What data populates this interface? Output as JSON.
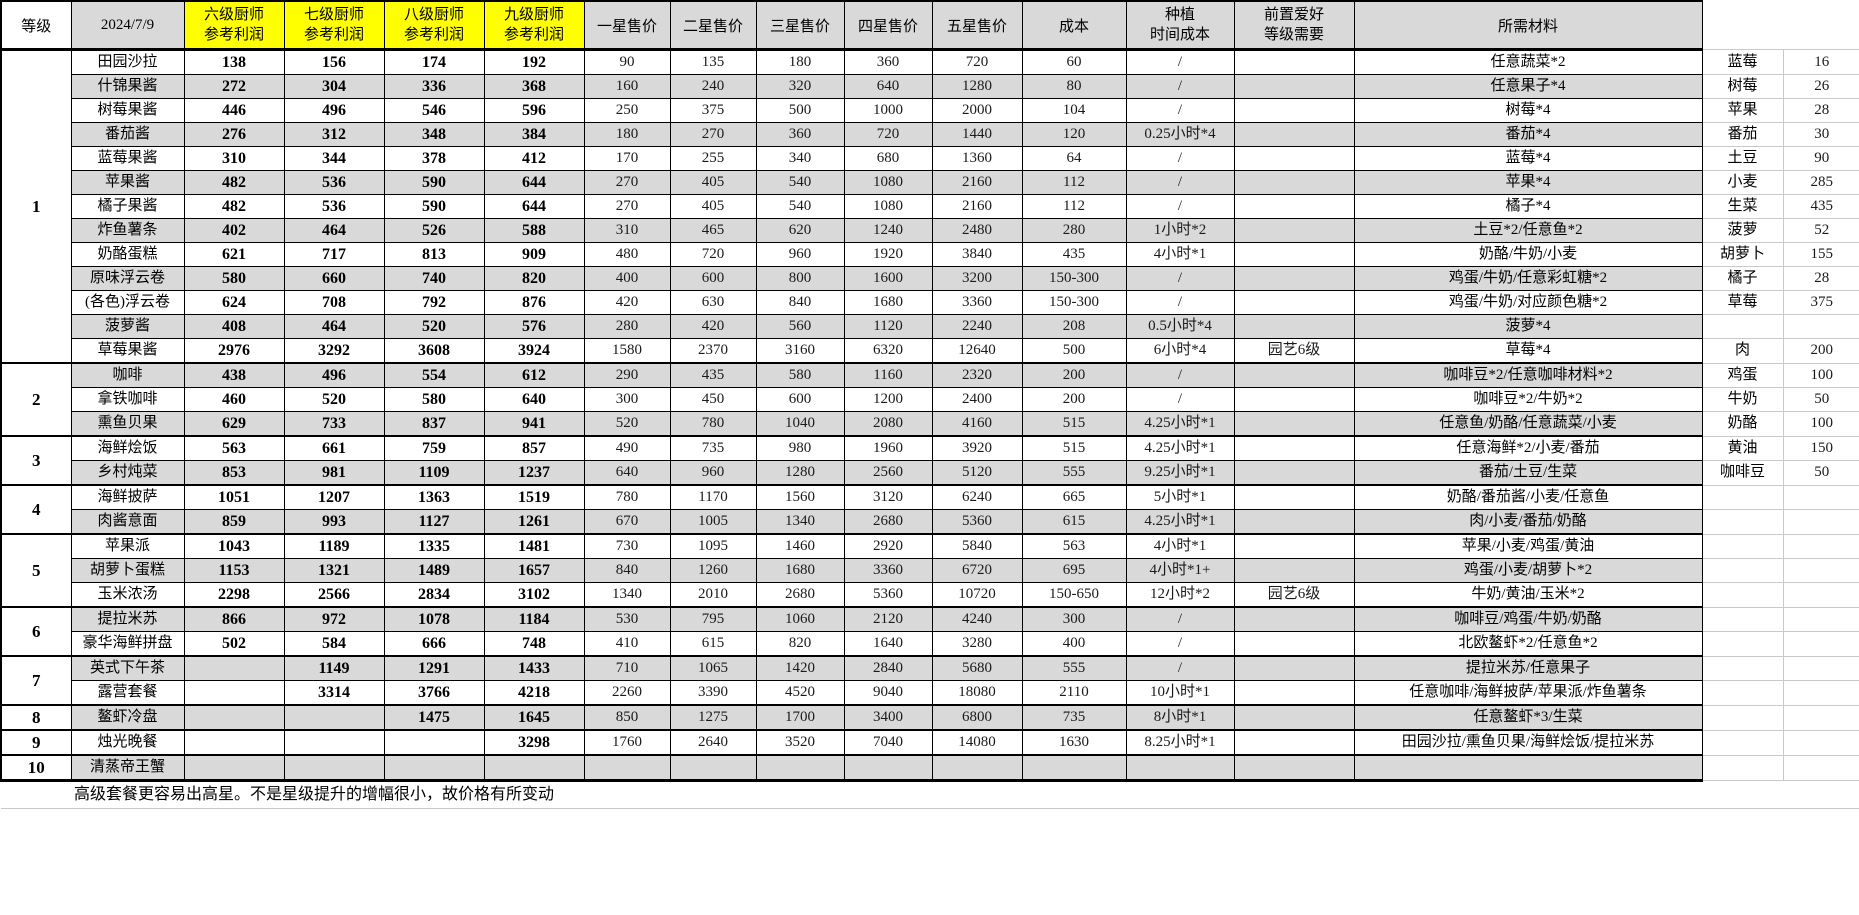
{
  "header": {
    "level": "等级",
    "date": "2024/7/9",
    "chef6": "六级厨师",
    "chef7": "七级厨师",
    "chef8": "八级厨师",
    "chef9": "九级厨师",
    "profit_sub": "参考利润",
    "star1": "一星售价",
    "star2": "二星售价",
    "star3": "三星售价",
    "star4": "四星售价",
    "star5": "五星售价",
    "cost": "成本",
    "plant1": "种植",
    "plant2": "时间成本",
    "hobby1": "前置爱好",
    "hobby2": "等级需要",
    "materials": "所需材料"
  },
  "colors": {
    "highlight": "#ffff00",
    "row_shade": "#d9d9d9",
    "grid": "#000000",
    "light_grid": "#c9c9c9"
  },
  "rows": [
    {
      "level": "1",
      "span": 13,
      "name": "田园沙拉",
      "p6": "138",
      "p7": "156",
      "p8": "174",
      "p9": "192",
      "s1": "90",
      "s2": "135",
      "s3": "180",
      "s4": "360",
      "s5": "720",
      "cost": "60",
      "time": "/",
      "hobby": "",
      "mats": "任意蔬菜*2",
      "ing": "蓝莓",
      "price": "16"
    },
    {
      "name": "什锦果酱",
      "p6": "272",
      "p7": "304",
      "p8": "336",
      "p9": "368",
      "s1": "160",
      "s2": "240",
      "s3": "320",
      "s4": "640",
      "s5": "1280",
      "cost": "80",
      "time": "/",
      "hobby": "",
      "mats": "任意果子*4",
      "ing": "树莓",
      "price": "26"
    },
    {
      "name": "树莓果酱",
      "p6": "446",
      "p7": "496",
      "p8": "546",
      "p9": "596",
      "s1": "250",
      "s2": "375",
      "s3": "500",
      "s4": "1000",
      "s5": "2000",
      "cost": "104",
      "time": "/",
      "hobby": "",
      "mats": "树莓*4",
      "ing": "苹果",
      "price": "28"
    },
    {
      "name": "番茄酱",
      "p6": "276",
      "p7": "312",
      "p8": "348",
      "p9": "384",
      "s1": "180",
      "s2": "270",
      "s3": "360",
      "s4": "720",
      "s5": "1440",
      "cost": "120",
      "time": "0.25小时*4",
      "hobby": "",
      "mats": "番茄*4",
      "ing": "番茄",
      "price": "30"
    },
    {
      "name": "蓝莓果酱",
      "p6": "310",
      "p7": "344",
      "p8": "378",
      "p9": "412",
      "s1": "170",
      "s2": "255",
      "s3": "340",
      "s4": "680",
      "s5": "1360",
      "cost": "64",
      "time": "/",
      "hobby": "",
      "mats": "蓝莓*4",
      "ing": "土豆",
      "price": "90"
    },
    {
      "name": "苹果酱",
      "p6": "482",
      "p7": "536",
      "p8": "590",
      "p9": "644",
      "s1": "270",
      "s2": "405",
      "s3": "540",
      "s4": "1080",
      "s5": "2160",
      "cost": "112",
      "time": "/",
      "hobby": "",
      "mats": "苹果*4",
      "ing": "小麦",
      "price": "285"
    },
    {
      "name": "橘子果酱",
      "p6": "482",
      "p7": "536",
      "p8": "590",
      "p9": "644",
      "s1": "270",
      "s2": "405",
      "s3": "540",
      "s4": "1080",
      "s5": "2160",
      "cost": "112",
      "time": "/",
      "hobby": "",
      "mats": "橘子*4",
      "ing": "生菜",
      "price": "435"
    },
    {
      "name": "炸鱼薯条",
      "p6": "402",
      "p7": "464",
      "p8": "526",
      "p9": "588",
      "s1": "310",
      "s2": "465",
      "s3": "620",
      "s4": "1240",
      "s5": "2480",
      "cost": "280",
      "time": "1小时*2",
      "hobby": "",
      "mats": "土豆*2/任意鱼*2",
      "ing": "菠萝",
      "price": "52"
    },
    {
      "name": "奶酪蛋糕",
      "p6": "621",
      "p7": "717",
      "p8": "813",
      "p9": "909",
      "s1": "480",
      "s2": "720",
      "s3": "960",
      "s4": "1920",
      "s5": "3840",
      "cost": "435",
      "time": "4小时*1",
      "hobby": "",
      "mats": "奶酪/牛奶/小麦",
      "ing": "胡萝卜",
      "price": "155"
    },
    {
      "name": "原味浮云卷",
      "p6": "580",
      "p7": "660",
      "p8": "740",
      "p9": "820",
      "s1": "400",
      "s2": "600",
      "s3": "800",
      "s4": "1600",
      "s5": "3200",
      "cost": "150-300",
      "time": "/",
      "hobby": "",
      "mats": "鸡蛋/牛奶/任意彩虹糖*2",
      "ing": "橘子",
      "price": "28"
    },
    {
      "name": "(各色)浮云卷",
      "p6": "624",
      "p7": "708",
      "p8": "792",
      "p9": "876",
      "s1": "420",
      "s2": "630",
      "s3": "840",
      "s4": "1680",
      "s5": "3360",
      "cost": "150-300",
      "time": "/",
      "hobby": "",
      "mats": "鸡蛋/牛奶/对应颜色糖*2",
      "ing": "草莓",
      "price": "375"
    },
    {
      "name": "菠萝酱",
      "p6": "408",
      "p7": "464",
      "p8": "520",
      "p9": "576",
      "s1": "280",
      "s2": "420",
      "s3": "560",
      "s4": "1120",
      "s5": "2240",
      "cost": "208",
      "time": "0.5小时*4",
      "hobby": "",
      "mats": "菠萝*4",
      "ing": "",
      "price": ""
    },
    {
      "name": "草莓果酱",
      "p6": "2976",
      "p7": "3292",
      "p8": "3608",
      "p9": "3924",
      "s1": "1580",
      "s2": "2370",
      "s3": "3160",
      "s4": "6320",
      "s5": "12640",
      "cost": "500",
      "time": "6小时*4",
      "hobby": "园艺6级",
      "mats": "草莓*4",
      "ing": "肉",
      "price": "200"
    },
    {
      "level": "2",
      "span": 3,
      "name": "咖啡",
      "p6": "438",
      "p7": "496",
      "p8": "554",
      "p9": "612",
      "s1": "290",
      "s2": "435",
      "s3": "580",
      "s4": "1160",
      "s5": "2320",
      "cost": "200",
      "time": "/",
      "hobby": "",
      "mats": "咖啡豆*2/任意咖啡材料*2",
      "ing": "鸡蛋",
      "price": "100"
    },
    {
      "name": "拿铁咖啡",
      "p6": "460",
      "p7": "520",
      "p8": "580",
      "p9": "640",
      "s1": "300",
      "s2": "450",
      "s3": "600",
      "s4": "1200",
      "s5": "2400",
      "cost": "200",
      "time": "/",
      "hobby": "",
      "mats": "咖啡豆*2/牛奶*2",
      "ing": "牛奶",
      "price": "50"
    },
    {
      "name": "熏鱼贝果",
      "p6": "629",
      "p7": "733",
      "p8": "837",
      "p9": "941",
      "s1": "520",
      "s2": "780",
      "s3": "1040",
      "s4": "2080",
      "s5": "4160",
      "cost": "515",
      "time": "4.25小时*1",
      "hobby": "",
      "mats": "任意鱼/奶酪/任意蔬菜/小麦",
      "ing": "奶酪",
      "price": "100"
    },
    {
      "level": "3",
      "span": 2,
      "name": "海鲜烩饭",
      "p6": "563",
      "p7": "661",
      "p8": "759",
      "p9": "857",
      "s1": "490",
      "s2": "735",
      "s3": "980",
      "s4": "1960",
      "s5": "3920",
      "cost": "515",
      "time": "4.25小时*1",
      "hobby": "",
      "mats": "任意海鲜*2/小麦/番茄",
      "ing": "黄油",
      "price": "150"
    },
    {
      "name": "乡村炖菜",
      "p6": "853",
      "p7": "981",
      "p8": "1109",
      "p9": "1237",
      "s1": "640",
      "s2": "960",
      "s3": "1280",
      "s4": "2560",
      "s5": "5120",
      "cost": "555",
      "time": "9.25小时*1",
      "hobby": "",
      "mats": "番茄/土豆/生菜",
      "ing": "咖啡豆",
      "price": "50"
    },
    {
      "level": "4",
      "span": 2,
      "name": "海鲜披萨",
      "p6": "1051",
      "p7": "1207",
      "p8": "1363",
      "p9": "1519",
      "s1": "780",
      "s2": "1170",
      "s3": "1560",
      "s4": "3120",
      "s5": "6240",
      "cost": "665",
      "time": "5小时*1",
      "hobby": "",
      "mats": "奶酪/番茄酱/小麦/任意鱼",
      "ing": "",
      "price": ""
    },
    {
      "name": "肉酱意面",
      "p6": "859",
      "p7": "993",
      "p8": "1127",
      "p9": "1261",
      "s1": "670",
      "s2": "1005",
      "s3": "1340",
      "s4": "2680",
      "s5": "5360",
      "cost": "615",
      "time": "4.25小时*1",
      "hobby": "",
      "mats": "肉/小麦/番茄/奶酪",
      "ing": "",
      "price": ""
    },
    {
      "level": "5",
      "span": 3,
      "name": "苹果派",
      "p6": "1043",
      "p7": "1189",
      "p8": "1335",
      "p9": "1481",
      "s1": "730",
      "s2": "1095",
      "s3": "1460",
      "s4": "2920",
      "s5": "5840",
      "cost": "563",
      "time": "4小时*1",
      "hobby": "",
      "mats": "苹果/小麦/鸡蛋/黄油",
      "ing": "",
      "price": ""
    },
    {
      "name": "胡萝卜蛋糕",
      "p6": "1153",
      "p7": "1321",
      "p8": "1489",
      "p9": "1657",
      "s1": "840",
      "s2": "1260",
      "s3": "1680",
      "s4": "3360",
      "s5": "6720",
      "cost": "695",
      "time": "4小时*1+",
      "hobby": "",
      "mats": "鸡蛋/小麦/胡萝卜*2",
      "ing": "",
      "price": ""
    },
    {
      "name": "玉米浓汤",
      "p6": "2298",
      "p7": "2566",
      "p8": "2834",
      "p9": "3102",
      "s1": "1340",
      "s2": "2010",
      "s3": "2680",
      "s4": "5360",
      "s5": "10720",
      "cost": "150-650",
      "time": "12小时*2",
      "hobby": "园艺6级",
      "mats": "牛奶/黄油/玉米*2",
      "ing": "",
      "price": ""
    },
    {
      "level": "6",
      "span": 2,
      "name": "提拉米苏",
      "p6": "866",
      "p7": "972",
      "p8": "1078",
      "p9": "1184",
      "s1": "530",
      "s2": "795",
      "s3": "1060",
      "s4": "2120",
      "s5": "4240",
      "cost": "300",
      "time": "/",
      "hobby": "",
      "mats": "咖啡豆/鸡蛋/牛奶/奶酪",
      "ing": "",
      "price": ""
    },
    {
      "name": "豪华海鲜拼盘",
      "p6": "502",
      "p7": "584",
      "p8": "666",
      "p9": "748",
      "s1": "410",
      "s2": "615",
      "s3": "820",
      "s4": "1640",
      "s5": "3280",
      "cost": "400",
      "time": "/",
      "hobby": "",
      "mats": "北欧鳌虾*2/任意鱼*2",
      "ing": "",
      "price": ""
    },
    {
      "level": "7",
      "span": 2,
      "name": "英式下午茶",
      "p6": "",
      "p7": "1149",
      "p8": "1291",
      "p9": "1433",
      "s1": "710",
      "s2": "1065",
      "s3": "1420",
      "s4": "2840",
      "s5": "5680",
      "cost": "555",
      "time": "/",
      "hobby": "",
      "mats": "提拉米苏/任意果子",
      "ing": "",
      "price": ""
    },
    {
      "name": "露营套餐",
      "p6": "",
      "p7": "3314",
      "p8": "3766",
      "p9": "4218",
      "s1": "2260",
      "s2": "3390",
      "s3": "4520",
      "s4": "9040",
      "s5": "18080",
      "cost": "2110",
      "time": "10小时*1",
      "hobby": "",
      "mats": "任意咖啡/海鲜披萨/苹果派/炸鱼薯条",
      "ing": "",
      "price": ""
    },
    {
      "level": "8",
      "span": 1,
      "name": "鳌虾冷盘",
      "p6": "",
      "p7": "",
      "p8": "1475",
      "p9": "1645",
      "s1": "850",
      "s2": "1275",
      "s3": "1700",
      "s4": "3400",
      "s5": "6800",
      "cost": "735",
      "time": "8小时*1",
      "hobby": "",
      "mats": "任意鳌虾*3/生菜",
      "ing": "",
      "price": ""
    },
    {
      "level": "9",
      "span": 1,
      "name": "烛光晚餐",
      "p6": "",
      "p7": "",
      "p8": "",
      "p9": "3298",
      "s1": "1760",
      "s2": "2640",
      "s3": "3520",
      "s4": "7040",
      "s5": "14080",
      "cost": "1630",
      "time": "8.25小时*1",
      "hobby": "",
      "mats": "田园沙拉/熏鱼贝果/海鲜烩饭/提拉米苏",
      "ing": "",
      "price": ""
    },
    {
      "level": "10",
      "span": 1,
      "name": "清蒸帝王蟹",
      "p6": "",
      "p7": "",
      "p8": "",
      "p9": "",
      "s1": "",
      "s2": "",
      "s3": "",
      "s4": "",
      "s5": "",
      "cost": "",
      "time": "",
      "hobby": "",
      "mats": "",
      "ing": "",
      "price": ""
    }
  ],
  "footer": {
    "note": "高级套餐更容易出高星。不是星级提升的增幅很小，故价格有所变动"
  }
}
